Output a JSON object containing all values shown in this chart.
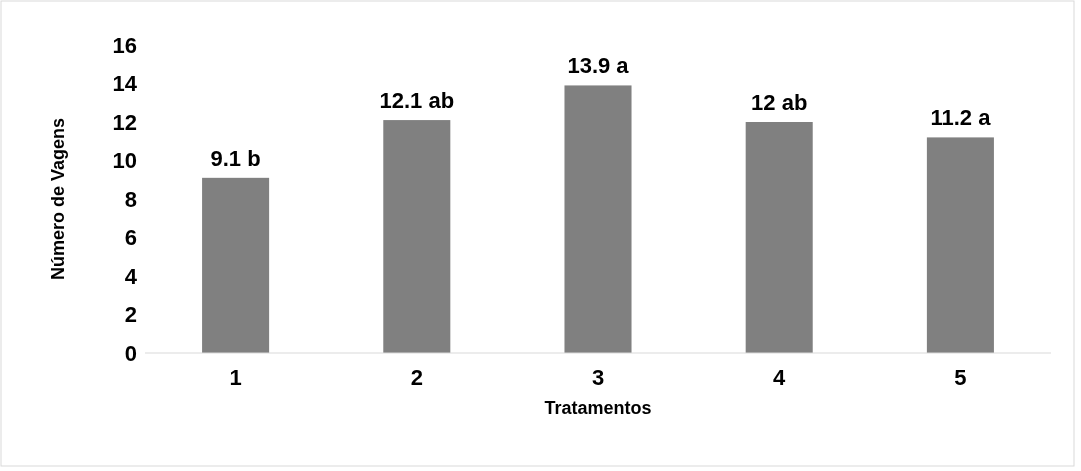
{
  "chart_data": {
    "type": "bar",
    "xlabel": "Tratamentos",
    "ylabel": "Número de Vagens",
    "categories": [
      "1",
      "2",
      "3",
      "4",
      "5"
    ],
    "values": [
      9.1,
      12.1,
      13.9,
      12,
      11.2
    ],
    "value_labels": [
      "9.1 b",
      "12.1 ab",
      "13.9 a",
      "12 ab",
      "11.2 a"
    ],
    "color": "#808080",
    "ylim": [
      0,
      16
    ],
    "yticks": [
      0,
      2,
      4,
      6,
      8,
      10,
      12,
      14,
      16
    ],
    "grid": false
  }
}
